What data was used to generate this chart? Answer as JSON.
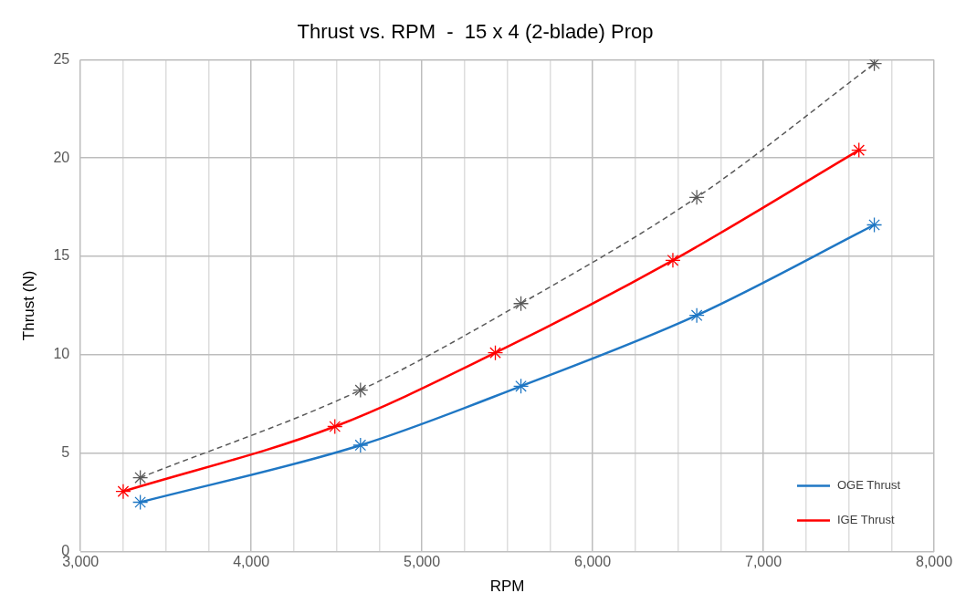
{
  "chart_data": {
    "type": "line",
    "title": "Thrust vs. RPM  -  15 x 4 (2-blade) Prop",
    "xlabel": "RPM",
    "ylabel": "Thrust (N)",
    "xlim": [
      3000,
      8000
    ],
    "xticks": [
      {
        "value": 3000,
        "label": "3,000"
      },
      {
        "value": 4000,
        "label": "4,000"
      },
      {
        "value": 5000,
        "label": "5,000"
      },
      {
        "value": 6000,
        "label": "6,000"
      },
      {
        "value": 7000,
        "label": "7,000"
      },
      {
        "value": 8000,
        "label": "8,000"
      }
    ],
    "ylim": [
      0,
      25
    ],
    "yticks": [
      0,
      5,
      10,
      15,
      20,
      25
    ],
    "grid": true,
    "legend": "bottom right",
    "marker": "cross",
    "series": [
      {
        "name": "OGE Thrust",
        "color": "#1f77c4",
        "x": [
          3350,
          4640,
          5580,
          6610,
          7650
        ],
        "values": [
          2.5,
          5.4,
          8.4,
          12.0,
          16.6
        ]
      },
      {
        "name": "IGE Thrust",
        "color": "#ff0000",
        "x": [
          3250,
          4490,
          5430,
          6470,
          7560
        ],
        "values": [
          3.05,
          6.35,
          10.1,
          14.8,
          20.4
        ]
      },
      {
        "color": "#595959",
        "x": [
          3350,
          4640,
          5580,
          6610,
          7650
        ],
        "values": [
          3.75,
          8.2,
          12.6,
          18.0,
          24.8
        ],
        "line_style": "dashed"
      }
    ]
  }
}
